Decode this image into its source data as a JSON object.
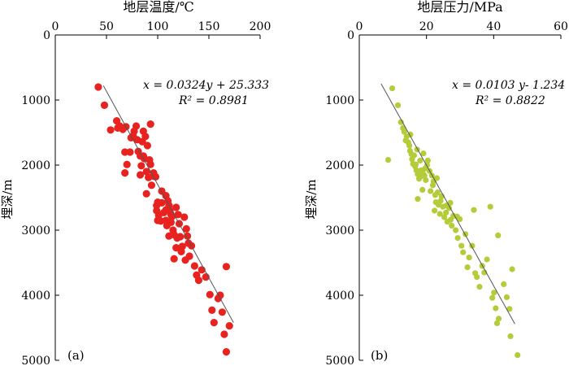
{
  "chart_data": [
    {
      "type": "scatter",
      "panel_label": "(a)",
      "xlabel": "地层温度/℃",
      "ylabel": "埋深/m",
      "xlim": [
        0,
        200
      ],
      "ylim": [
        0,
        5000
      ],
      "y_inverted": true,
      "x_axis_position": "top",
      "xticks": [
        "0",
        "50",
        "100",
        "150",
        "200"
      ],
      "yticks": [
        "0",
        "1000",
        "2000",
        "3000",
        "4000",
        "5000"
      ],
      "equation": "x = 0.0324y + 25.333",
      "r2": "R² = 0.8981",
      "marker_color": "#e8231f",
      "fit_line": {
        "x": [
          47,
          174
        ],
        "y": [
          780,
          4420
        ]
      },
      "points": [
        [
          42,
          800
        ],
        [
          48,
          1080
        ],
        [
          54,
          1460
        ],
        [
          60,
          1320
        ],
        [
          61,
          1430
        ],
        [
          63,
          1400
        ],
        [
          66,
          1450
        ],
        [
          68,
          1800
        ],
        [
          68,
          2120
        ],
        [
          70,
          1990
        ],
        [
          69,
          1410
        ],
        [
          73,
          1800
        ],
        [
          74,
          1580
        ],
        [
          76,
          1550
        ],
        [
          77,
          1480
        ],
        [
          79,
          1400
        ],
        [
          80,
          1610
        ],
        [
          81,
          1790
        ],
        [
          83,
          1860
        ],
        [
          83,
          2150
        ],
        [
          84,
          2010
        ],
        [
          85,
          1640
        ],
        [
          86,
          1860
        ],
        [
          86,
          1480
        ],
        [
          88,
          1560
        ],
        [
          87,
          1900
        ],
        [
          89,
          2100
        ],
        [
          89,
          2440
        ],
        [
          90,
          1700
        ],
        [
          92,
          1920
        ],
        [
          91,
          2190
        ],
        [
          93,
          1370
        ],
        [
          93,
          1990
        ],
        [
          94,
          2310
        ],
        [
          96,
          2120
        ],
        [
          96,
          2170
        ],
        [
          98,
          2180
        ],
        [
          99,
          2620
        ],
        [
          99,
          2700
        ],
        [
          100,
          2570
        ],
        [
          101,
          2770
        ],
        [
          100,
          2850
        ],
        [
          103,
          2860
        ],
        [
          104,
          2400
        ],
        [
          104,
          2580
        ],
        [
          106,
          2730
        ],
        [
          108,
          2470
        ],
        [
          108,
          2690
        ],
        [
          108,
          2850
        ],
        [
          109,
          2930
        ],
        [
          110,
          2550
        ],
        [
          111,
          2620
        ],
        [
          111,
          3090
        ],
        [
          112,
          2700
        ],
        [
          113,
          2880
        ],
        [
          113,
          2760
        ],
        [
          114,
          2790
        ],
        [
          115,
          3000
        ],
        [
          116,
          3070
        ],
        [
          116,
          3440
        ],
        [
          118,
          2650
        ],
        [
          118,
          3270
        ],
        [
          119,
          3120
        ],
        [
          120,
          2760
        ],
        [
          121,
          2900
        ],
        [
          122,
          3100
        ],
        [
          123,
          3330
        ],
        [
          124,
          3250
        ],
        [
          126,
          2800
        ],
        [
          127,
          3460
        ],
        [
          128,
          2980
        ],
        [
          129,
          3090
        ],
        [
          130,
          3200
        ],
        [
          131,
          3400
        ],
        [
          133,
          3240
        ],
        [
          136,
          3550
        ],
        [
          138,
          3690
        ],
        [
          140,
          3770
        ],
        [
          143,
          3610
        ],
        [
          147,
          3720
        ],
        [
          151,
          3990
        ],
        [
          153,
          4230
        ],
        [
          155,
          4420
        ],
        [
          159,
          4050
        ],
        [
          161,
          4000
        ],
        [
          163,
          4260
        ],
        [
          165,
          4600
        ],
        [
          167,
          3560
        ],
        [
          167,
          4870
        ],
        [
          170,
          4470
        ]
      ]
    },
    {
      "type": "scatter",
      "panel_label": "(b)",
      "xlabel": "地层压力/MPa",
      "ylabel": "埋深/m",
      "xlim": [
        0,
        60
      ],
      "ylim": [
        0,
        5000
      ],
      "y_inverted": true,
      "x_axis_position": "top",
      "xticks": [
        "0",
        "20",
        "40",
        "60"
      ],
      "yticks": [
        "0",
        "1000",
        "2000",
        "3000",
        "4000",
        "5000"
      ],
      "equation": "x = 0.0103 y- 1.234",
      "r2": "R² = 0.8822",
      "marker_color": "#b5cc3a",
      "fit_line": {
        "x": [
          6.5,
          46.3
        ],
        "y": [
          750,
          4440
        ]
      },
      "points": [
        [
          9.8,
          820
        ],
        [
          11.5,
          1080
        ],
        [
          12.4,
          1340
        ],
        [
          13.0,
          1430
        ],
        [
          13.4,
          1490
        ],
        [
          14.1,
          1560
        ],
        [
          14.6,
          1650
        ],
        [
          15.1,
          1780
        ],
        [
          15.2,
          1530
        ],
        [
          15.5,
          1830
        ],
        [
          15.7,
          1910
        ],
        [
          16.0,
          1980
        ],
        [
          16.3,
          1850
        ],
        [
          16.6,
          2020
        ],
        [
          17.0,
          2080
        ],
        [
          17.2,
          1760
        ],
        [
          17.4,
          2140
        ],
        [
          17.8,
          2210
        ],
        [
          18.1,
          1930
        ],
        [
          18.4,
          2080
        ],
        [
          18.5,
          2170
        ],
        [
          18.9,
          2120
        ],
        [
          19.1,
          1820
        ],
        [
          19.6,
          2050
        ],
        [
          19.8,
          2230
        ],
        [
          20.2,
          2000
        ],
        [
          20.4,
          1930
        ],
        [
          20.9,
          2090
        ],
        [
          21.2,
          2400
        ],
        [
          21.6,
          2160
        ],
        [
          22.1,
          2250
        ],
        [
          22.4,
          2700
        ],
        [
          22.8,
          2570
        ],
        [
          23.3,
          2420
        ],
        [
          23.6,
          2610
        ],
        [
          24.0,
          2750
        ],
        [
          24.5,
          2480
        ],
        [
          24.9,
          2640
        ],
        [
          25.3,
          2800
        ],
        [
          25.8,
          2730
        ],
        [
          26.2,
          2870
        ],
        [
          26.7,
          2660
        ],
        [
          27.1,
          2580
        ],
        [
          27.5,
          2930
        ],
        [
          28.0,
          2780
        ],
        [
          28.7,
          3000
        ],
        [
          29.3,
          3120
        ],
        [
          29.9,
          2830
        ],
        [
          30.4,
          3240
        ],
        [
          30.9,
          3340
        ],
        [
          31.6,
          3060
        ],
        [
          32.2,
          3570
        ],
        [
          32.7,
          3420
        ],
        [
          33.6,
          3240
        ],
        [
          34.1,
          2690
        ],
        [
          34.5,
          3660
        ],
        [
          35.0,
          3720
        ],
        [
          35.8,
          3870
        ],
        [
          36.6,
          3550
        ],
        [
          37.2,
          3650
        ],
        [
          38.0,
          3450
        ],
        [
          39.6,
          4040
        ],
        [
          40.1,
          3960
        ],
        [
          40.6,
          4200
        ],
        [
          41.0,
          4430
        ],
        [
          41.5,
          4360
        ],
        [
          43.0,
          3830
        ],
        [
          43.9,
          4030
        ],
        [
          44.7,
          4210
        ],
        [
          45.0,
          4630
        ],
        [
          45.5,
          3600
        ],
        [
          47.1,
          4920
        ],
        [
          18.8,
          2380
        ],
        [
          17.4,
          2520
        ],
        [
          8.6,
          1920
        ],
        [
          23.1,
          2200
        ],
        [
          27.2,
          2840
        ],
        [
          29.1,
          2790
        ],
        [
          39.0,
          2640
        ],
        [
          41.3,
          3080
        ],
        [
          13.8,
          1620
        ],
        [
          14.9,
          1700
        ],
        [
          16.8,
          1990
        ],
        [
          19.4,
          2160
        ],
        [
          21.9,
          2310
        ],
        [
          22.6,
          2460
        ],
        [
          24.2,
          2550
        ],
        [
          26.0,
          2620
        ]
      ]
    }
  ]
}
